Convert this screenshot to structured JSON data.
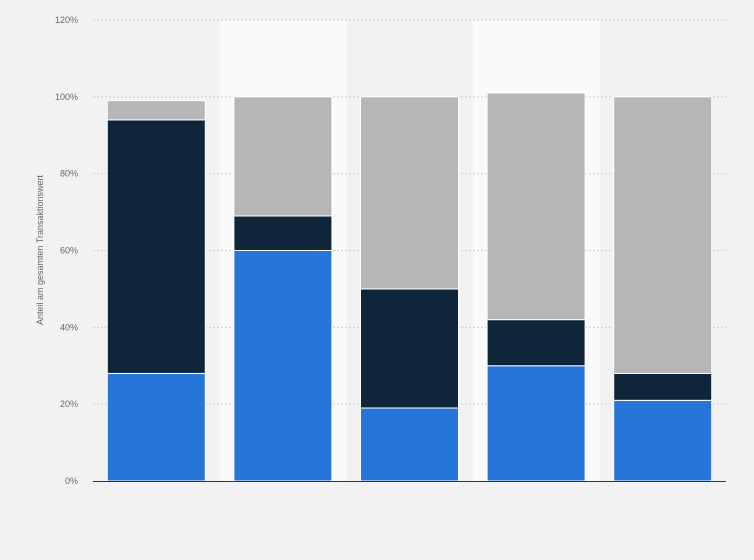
{
  "chart_data": {
    "type": "bar",
    "stacked": true,
    "categories": [
      "",
      "",
      "",
      "",
      ""
    ],
    "series": [
      {
        "color": "#2775d9",
        "values": [
          28,
          60,
          19,
          30,
          21
        ]
      },
      {
        "color": "#0e253a",
        "values": [
          66,
          9,
          31,
          12,
          7
        ]
      },
      {
        "color": "#b6b6b6",
        "values": [
          5,
          31,
          50,
          59,
          72
        ]
      }
    ],
    "ylabel": "Anteil am gesamten Transaktionswert",
    "xlabel": "",
    "ylim": [
      0,
      120
    ],
    "yticks": [
      0,
      20,
      40,
      60,
      80,
      100,
      120
    ],
    "ytick_suffix": "%",
    "grid": true,
    "legend": "none"
  }
}
